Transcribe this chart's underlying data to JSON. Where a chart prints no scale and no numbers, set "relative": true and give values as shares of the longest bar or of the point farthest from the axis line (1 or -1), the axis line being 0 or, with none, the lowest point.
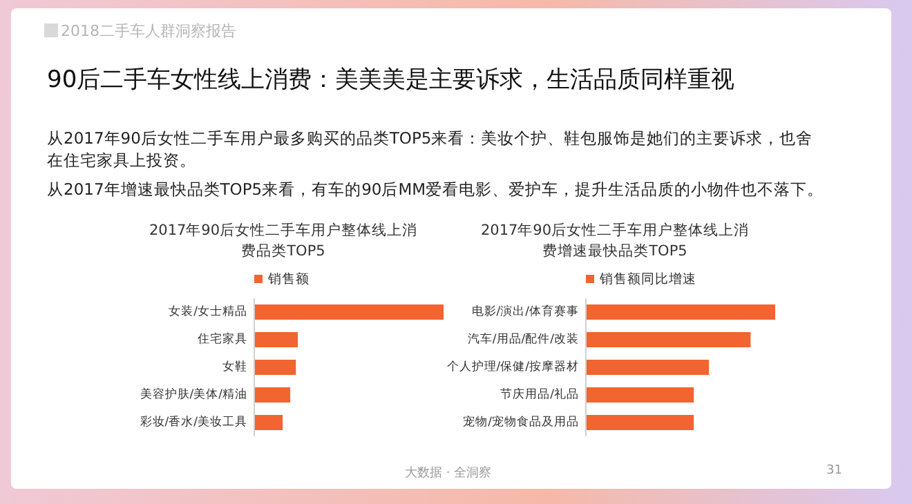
{
  "chart_data": [
    {
      "type": "other",
      "title": "90后二手车女性线上消费：美美美是主要诉求，生活品质同样重视",
      "annotations": [
        "2018二手车人群洞察报告",
        "从2017年90后女性二手车用户最多购买的品类TOP5来看：美妆个护、鞋包服饰是她们的主要诉求，也舍在住宅家具上投资。",
        "从2017年增速最快品类TOP5来看，有车的90后MM爱看电影、爱护车，提升生活品质的小物件也不落下。",
        "大数据 · 全洞察",
        "31"
      ]
    },
    {
      "type": "bar",
      "orientation": "horizontal",
      "relative": true,
      "legend": "top",
      "title": "2017年90后女性二手车用户整体线上消费品类TOP5",
      "categories": [
        "女装/女士精品",
        "住宅家具",
        "女鞋",
        "美容护肤/美体/精油",
        "彩妆/香水/美妆工具"
      ],
      "series": [
        {
          "name": "销售额",
          "color": "#f26430",
          "values": [
            1,
            0.23,
            0.22,
            0.19,
            0.15
          ]
        }
      ]
    },
    {
      "type": "bar",
      "orientation": "horizontal",
      "relative": true,
      "legend": "top",
      "title": "2017年90后女性二手车用户整体线上消费增速最快品类TOP5",
      "categories": [
        "电影/演出/体育赛事",
        "汽车/用品/配件/改装",
        "个人护理/保健/按摩器材",
        "节庆用品/礼品",
        "宠物/宠物食品及用品"
      ],
      "series": [
        {
          "name": "销售额同比增速",
          "color": "#f26430",
          "values": [
            1,
            0.87,
            0.65,
            0.57,
            0.57
          ]
        }
      ]
    }
  ]
}
